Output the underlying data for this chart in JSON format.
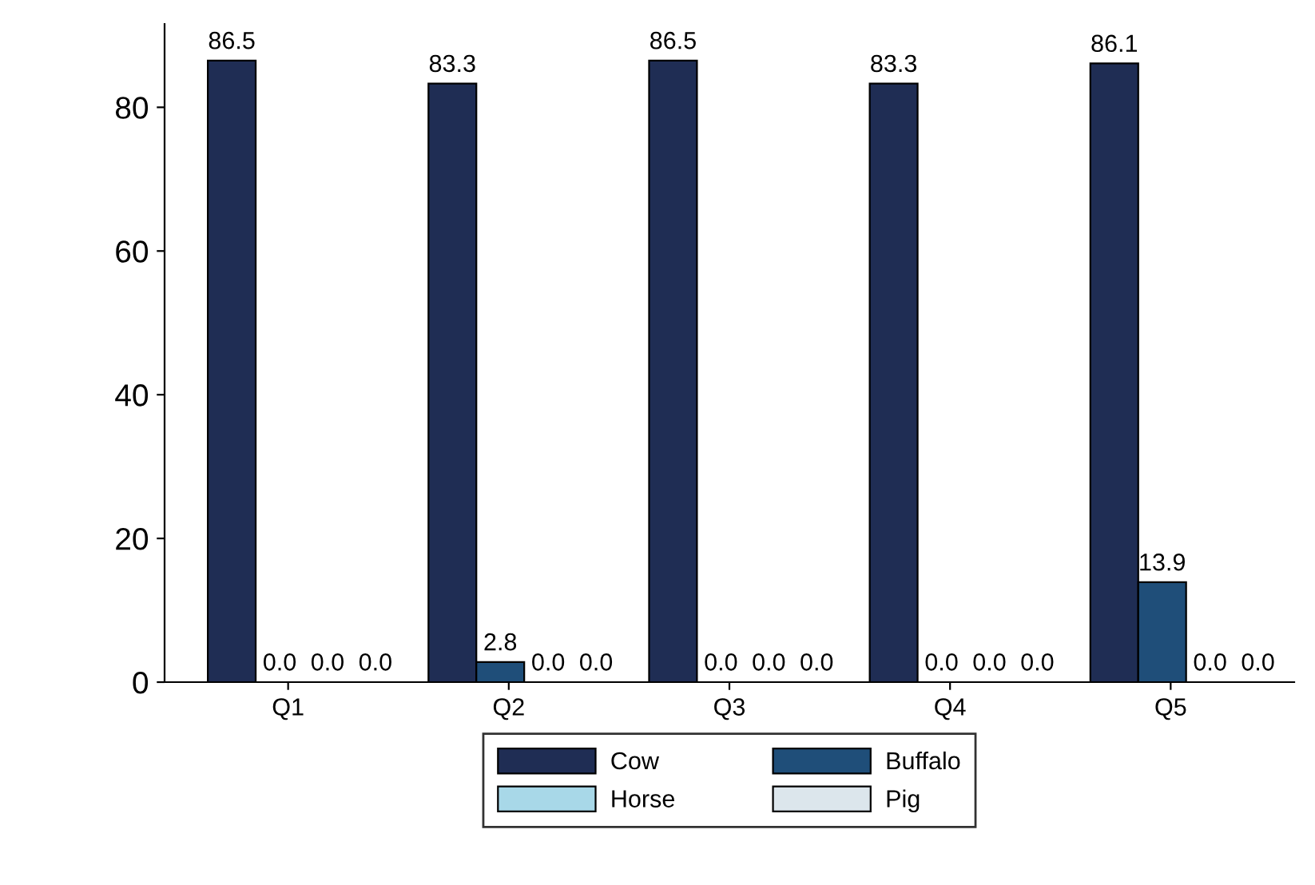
{
  "chart_data": {
    "type": "bar",
    "categories": [
      "Q1",
      "Q2",
      "Q3",
      "Q4",
      "Q5"
    ],
    "series": [
      {
        "name": "Cow",
        "color": "#1f2d54",
        "values": [
          86.5,
          83.3,
          86.5,
          83.3,
          86.1
        ],
        "value_labels": [
          "86.5",
          "83.3",
          "86.5",
          "83.3",
          "86.1"
        ]
      },
      {
        "name": "Buffalo",
        "color": "#1f4e79",
        "values": [
          0,
          2.8,
          0,
          0,
          13.9
        ],
        "value_labels": [
          "0.0",
          "2.8",
          "0.0",
          "0.0",
          "13.9"
        ]
      },
      {
        "name": "Horse",
        "color": "#a8d8e8",
        "values": [
          0,
          0,
          0,
          0,
          0
        ],
        "value_labels": [
          "0.0",
          "0.0",
          "0.0",
          "0.0",
          "0.0"
        ]
      },
      {
        "name": "Pig",
        "color": "#dce6ec",
        "values": [
          0,
          0,
          0,
          0,
          0
        ],
        "value_labels": [
          "0.0",
          "0.0",
          "0.0",
          "0.0",
          "0.0"
        ]
      }
    ],
    "ylim": [
      0,
      91.6
    ],
    "yticks": [
      0,
      20,
      40,
      60,
      80
    ],
    "legend": "bottom"
  }
}
